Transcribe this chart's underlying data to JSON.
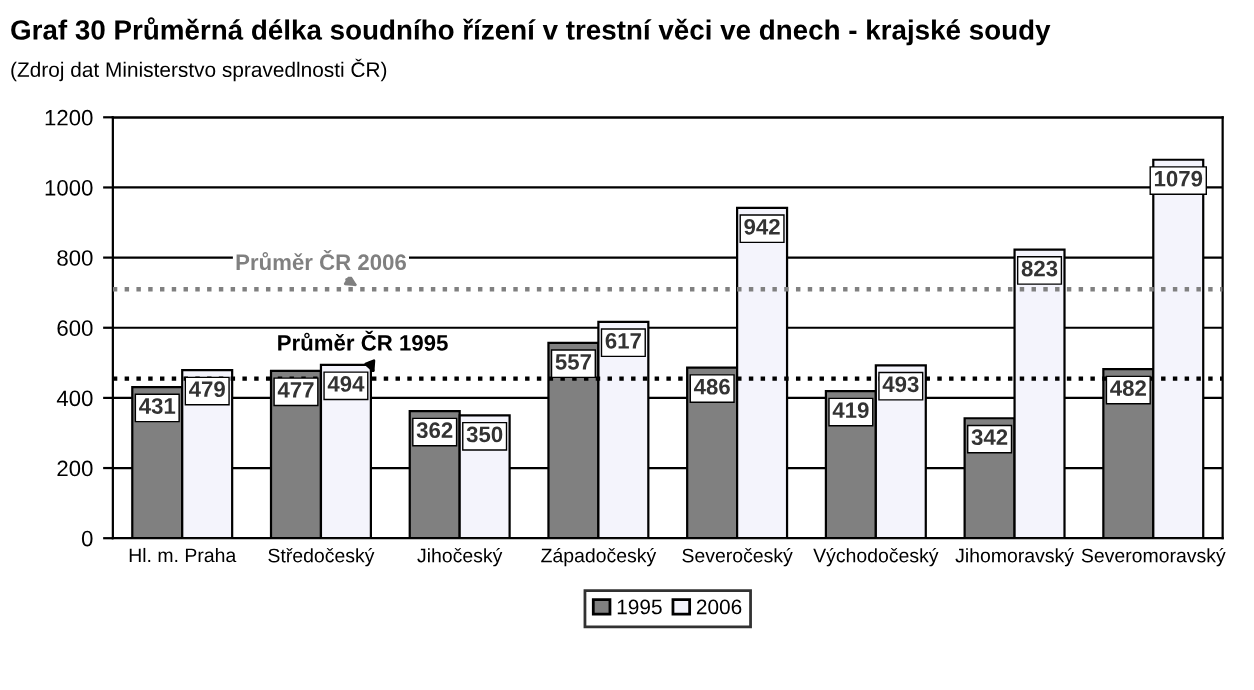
{
  "chart_data": {
    "type": "bar",
    "title": "Graf 30 Průměrná délka soudního řízení v trestní věci ve dnech - krajské soudy",
    "subtitle": "(Zdroj dat Ministerstvo spravedlnosti ČR)",
    "categories": [
      "Hl. m. Praha",
      "Středočeský",
      "Jihočeský",
      "Západočeský",
      "Severočeský",
      "Východočeský",
      "Jihomoravský",
      "Severomoravský"
    ],
    "series": [
      {
        "name": "1995",
        "color": "#808080",
        "values": [
          431,
          477,
          362,
          557,
          486,
          419,
          342,
          482
        ]
      },
      {
        "name": "2006",
        "color": "#f4f4fc",
        "values": [
          479,
          494,
          350,
          617,
          942,
          493,
          823,
          1079
        ]
      }
    ],
    "ylim": [
      0,
      1200
    ],
    "yticks": [
      0,
      200,
      400,
      600,
      800,
      1000,
      1200
    ],
    "grid": "y",
    "legend": "bottom",
    "data_labels": true,
    "ref_lines": [
      {
        "axis": "y",
        "value": 710,
        "label": "Průměr ČR 2006",
        "color": "#808080",
        "line_style": "dotted"
      },
      {
        "axis": "y",
        "value": 455,
        "label": "Průměr ČR 1995",
        "color": "#000000",
        "line_style": "dotted"
      }
    ]
  }
}
